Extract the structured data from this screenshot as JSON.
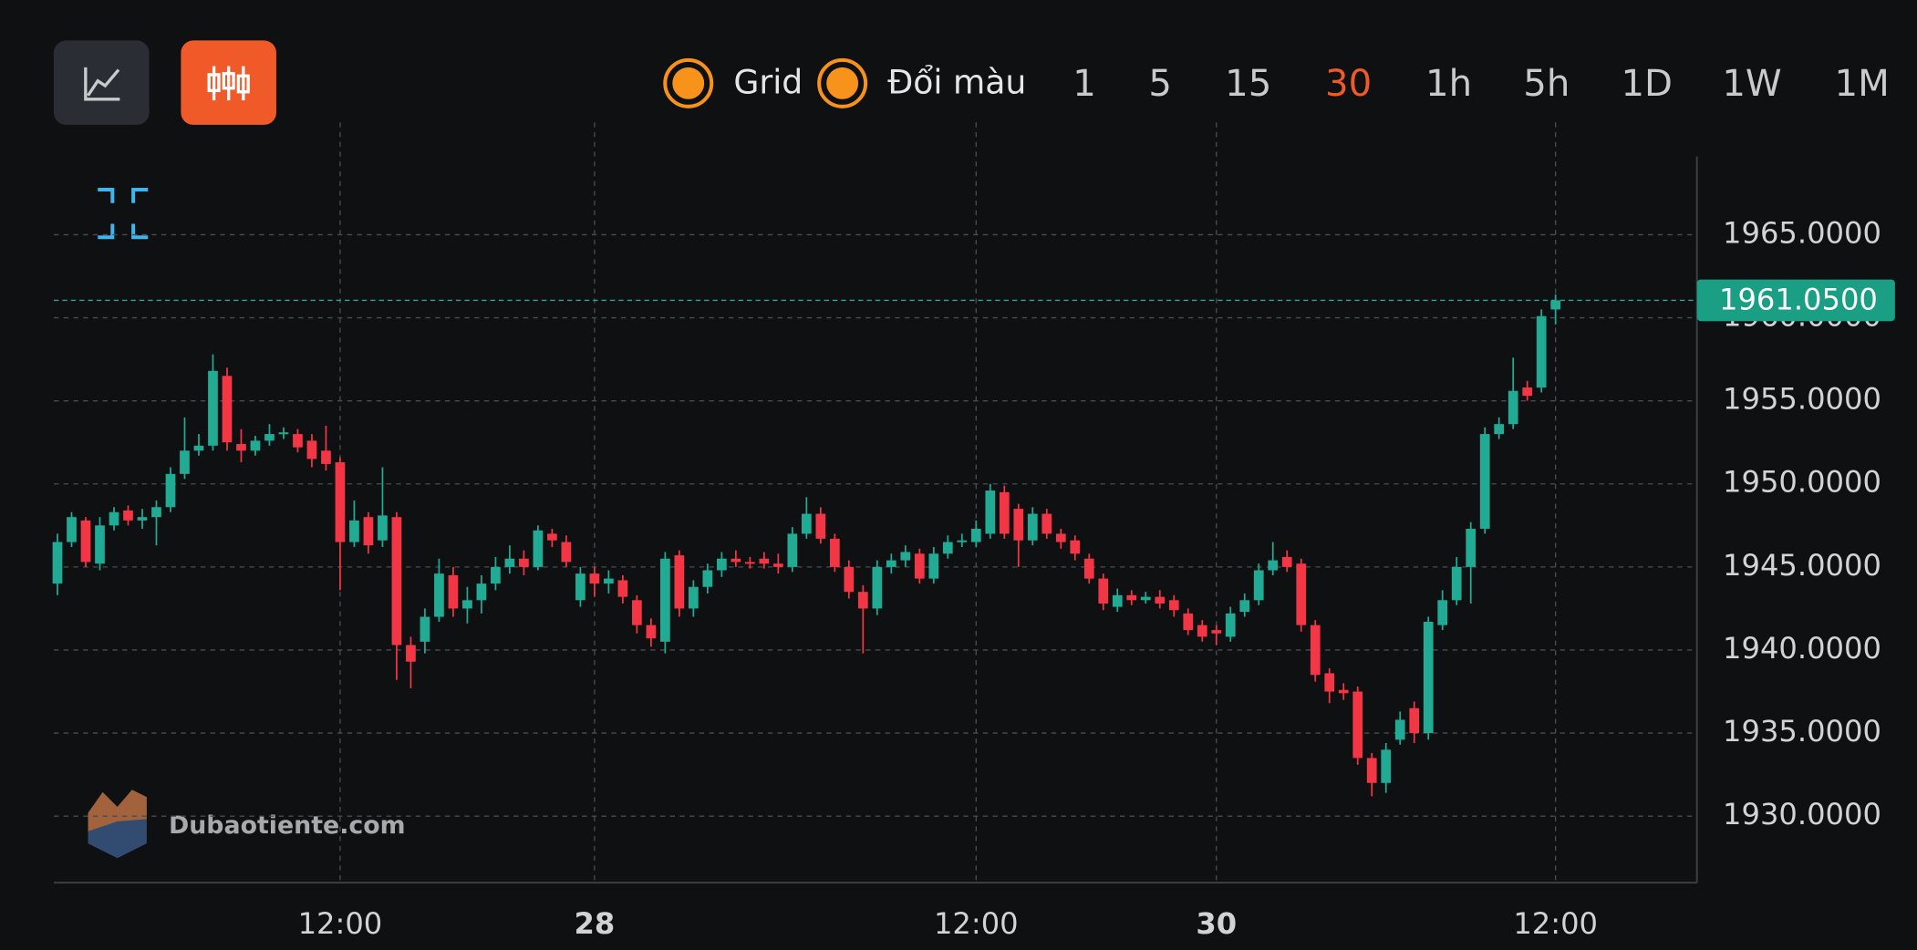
{
  "toolbar": {
    "toggles": [
      "Grid",
      "Đổi màu"
    ],
    "intervals": [
      "1",
      "5",
      "15",
      "30",
      "1h",
      "5h",
      "1D",
      "1W",
      "1M"
    ],
    "active_interval": "30"
  },
  "watermark": "Dubaotiente.com",
  "chart_data": {
    "type": "candlestick",
    "up_color": "#22ab94",
    "down_color": "#f23645",
    "grid": true,
    "ylim": [
      1926,
      1969.7
    ],
    "yticks": [
      {
        "value": 1930,
        "label": "1930.0000"
      },
      {
        "value": 1935,
        "label": "1935.0000"
      },
      {
        "value": 1940,
        "label": "1940.0000"
      },
      {
        "value": 1945,
        "label": "1945.0000"
      },
      {
        "value": 1950,
        "label": "1950.0000"
      },
      {
        "value": 1955,
        "label": "1955.0000"
      },
      {
        "value": 1960,
        "label": "1960.0000"
      },
      {
        "value": 1965,
        "label": "1965.0000"
      }
    ],
    "last_price": {
      "value": 1961.05,
      "label": "1961.0500"
    },
    "categories": [
      null,
      null,
      null,
      null,
      null,
      null,
      null,
      null,
      null,
      null,
      null,
      null,
      null,
      null,
      null,
      null,
      null,
      null,
      null,
      null,
      "12:00",
      null,
      null,
      null,
      null,
      null,
      null,
      null,
      null,
      null,
      null,
      null,
      null,
      null,
      null,
      null,
      null,
      null,
      "28",
      null,
      null,
      null,
      null,
      null,
      null,
      null,
      null,
      null,
      null,
      null,
      null,
      null,
      null,
      null,
      null,
      null,
      null,
      null,
      null,
      null,
      null,
      null,
      null,
      null,
      null,
      "12:00",
      null,
      null,
      null,
      null,
      null,
      null,
      null,
      null,
      null,
      null,
      null,
      null,
      null,
      null,
      null,
      null,
      "30",
      null,
      null,
      null,
      null,
      null,
      null,
      null,
      null,
      null,
      null,
      null,
      null,
      null,
      null,
      null,
      null,
      null,
      null,
      null,
      null,
      null,
      null,
      null,
      "12:00"
    ],
    "open": [
      1944,
      1946.5,
      1947.8,
      1945.2,
      1947.5,
      1948.4,
      1947.8,
      1948,
      1948.6,
      1950.6,
      1952,
      1952.3,
      1956.5,
      1952.4,
      1952,
      1952.6,
      1953,
      1953,
      1952.6,
      1952,
      1951.3,
      1946.5,
      1948,
      1946.6,
      1948,
      1940.3,
      1940.5,
      1942,
      1944.5,
      1942.5,
      1943,
      1944,
      1945,
      1945.5,
      1945,
      1947,
      1946.5,
      1943,
      1944.6,
      1944,
      1944.2,
      1943,
      1941.5,
      1940.5,
      1945.7,
      1942.5,
      1943.8,
      1944.8,
      1945.5,
      1945.3,
      1945.5,
      1945.2,
      1945,
      1947,
      1948.2,
      1946.7,
      1945,
      1943.5,
      1942.5,
      1945,
      1945.4,
      1945.8,
      1944.3,
      1945.8,
      1946.5,
      1946.5,
      1947,
      1949.5,
      1948.5,
      1946.6,
      1948.2,
      1947,
      1946.6,
      1945.5,
      1944.3,
      1942.6,
      1943.3,
      1943,
      1943.2,
      1943,
      1942.2,
      1941.5,
      1941.2,
      1940.8,
      1942.3,
      1943,
      1944.8,
      1945.6,
      1945.2,
      1941.5,
      1938.6,
      1937.6,
      1937.5,
      1933.5,
      1932,
      1934.6,
      1936.5,
      1935,
      1941.5,
      1943,
      1945,
      1947.3,
      1953,
      1953.6,
      1955.8,
      1955.8,
      1960.5
    ],
    "high": [
      1947,
      1948.3,
      1948,
      1948,
      1948.6,
      1948.7,
      1948.5,
      1949,
      1951,
      1954,
      1953,
      1957.8,
      1957,
      1953.3,
      1952.9,
      1953.6,
      1953.4,
      1953.3,
      1953,
      1953.5,
      1951.6,
      1949,
      1948.3,
      1951,
      1948.3,
      1940.8,
      1942.5,
      1945.5,
      1945,
      1943.8,
      1944.5,
      1945.6,
      1946.3,
      1946,
      1947.5,
      1947.3,
      1946.9,
      1945,
      1945,
      1944.8,
      1944.5,
      1943.3,
      1941.9,
      1945.9,
      1946,
      1944.2,
      1945.2,
      1945.9,
      1946,
      1945.6,
      1945.9,
      1945.8,
      1947.4,
      1949.2,
      1948.6,
      1947,
      1945.4,
      1943.9,
      1945.4,
      1945.8,
      1946.3,
      1946.1,
      1946.2,
      1946.9,
      1947,
      1947.8,
      1950,
      1949.9,
      1948.8,
      1948.6,
      1948.5,
      1947.3,
      1946.9,
      1945.8,
      1944.6,
      1943.7,
      1943.6,
      1943.5,
      1943.6,
      1943.3,
      1942.5,
      1941.8,
      1941.5,
      1942.6,
      1943.4,
      1945.2,
      1946.5,
      1946,
      1945.5,
      1941.8,
      1938.9,
      1938,
      1937.8,
      1933.8,
      1934.4,
      1936.3,
      1936.9,
      1942,
      1943.6,
      1945.6,
      1947.7,
      1953.4,
      1954,
      1957.6,
      1956.2,
      1960.5,
      1961.4
    ],
    "low": [
      1943.3,
      1946.2,
      1945,
      1944.8,
      1947.2,
      1947.5,
      1947.3,
      1946.3,
      1948.3,
      1950.3,
      1951.7,
      1952,
      1952,
      1951.3,
      1951.7,
      1952.3,
      1952.7,
      1951.9,
      1951,
      1950.8,
      1943.6,
      1946.2,
      1945.8,
      1946.2,
      1938.2,
      1937.7,
      1939.8,
      1941.7,
      1942,
      1941.6,
      1942.2,
      1943.6,
      1944.6,
      1944.5,
      1944.8,
      1946.2,
      1945,
      1942.6,
      1943.2,
      1943.4,
      1942.8,
      1941,
      1940.2,
      1939.8,
      1942,
      1942,
      1943.4,
      1944.4,
      1945,
      1944.9,
      1944.9,
      1944.6,
      1944.7,
      1946.7,
      1946.4,
      1944.7,
      1943.1,
      1939.8,
      1942.1,
      1944.6,
      1945,
      1944,
      1944,
      1945.5,
      1946.2,
      1946.2,
      1946.7,
      1946.7,
      1945,
      1946.3,
      1946.7,
      1946.1,
      1945.4,
      1944,
      1942.4,
      1942.3,
      1942.7,
      1942.8,
      1942.5,
      1942,
      1940.9,
      1940.5,
      1940.3,
      1940.5,
      1942,
      1942.7,
      1944.5,
      1944.7,
      1941.1,
      1938.1,
      1936.8,
      1937,
      1933.1,
      1931.2,
      1931.4,
      1934.3,
      1934.4,
      1934.6,
      1941.2,
      1942.7,
      1942.8,
      1947,
      1952.7,
      1953.3,
      1955,
      1955.5,
      1959.6
    ],
    "close": [
      1946.5,
      1948,
      1945.3,
      1947.5,
      1948.3,
      1947.8,
      1948,
      1948.6,
      1950.6,
      1952,
      1952.3,
      1956.8,
      1952.5,
      1952,
      1952.6,
      1953,
      1953.1,
      1952.2,
      1951.5,
      1951.2,
      1946.5,
      1947.8,
      1946.3,
      1948.1,
      1940.3,
      1939.3,
      1942,
      1944.6,
      1942.5,
      1943,
      1944,
      1945,
      1945.5,
      1945,
      1947.2,
      1946.6,
      1945.3,
      1944.6,
      1944,
      1944.3,
      1943.2,
      1941.5,
      1940.7,
      1945.5,
      1942.5,
      1943.8,
      1944.8,
      1945.5,
      1945.3,
      1945.2,
      1945.2,
      1945,
      1947,
      1948.2,
      1946.7,
      1945,
      1943.5,
      1942.5,
      1945,
      1945.4,
      1945.9,
      1944.3,
      1945.8,
      1946.5,
      1946.6,
      1947.3,
      1949.6,
      1947,
      1946.6,
      1948.2,
      1947,
      1946.5,
      1945.8,
      1944.3,
      1942.8,
      1943.3,
      1943,
      1943.2,
      1942.8,
      1942.4,
      1941.2,
      1940.8,
      1941,
      1942.2,
      1943,
      1944.8,
      1945.4,
      1945,
      1941.5,
      1938.5,
      1937.5,
      1937.4,
      1933.5,
      1932,
      1934,
      1935.8,
      1935,
      1941.7,
      1943,
      1945,
      1947.3,
      1953,
      1953.6,
      1955.6,
      1955.3,
      1960.1,
      1961.05
    ]
  }
}
